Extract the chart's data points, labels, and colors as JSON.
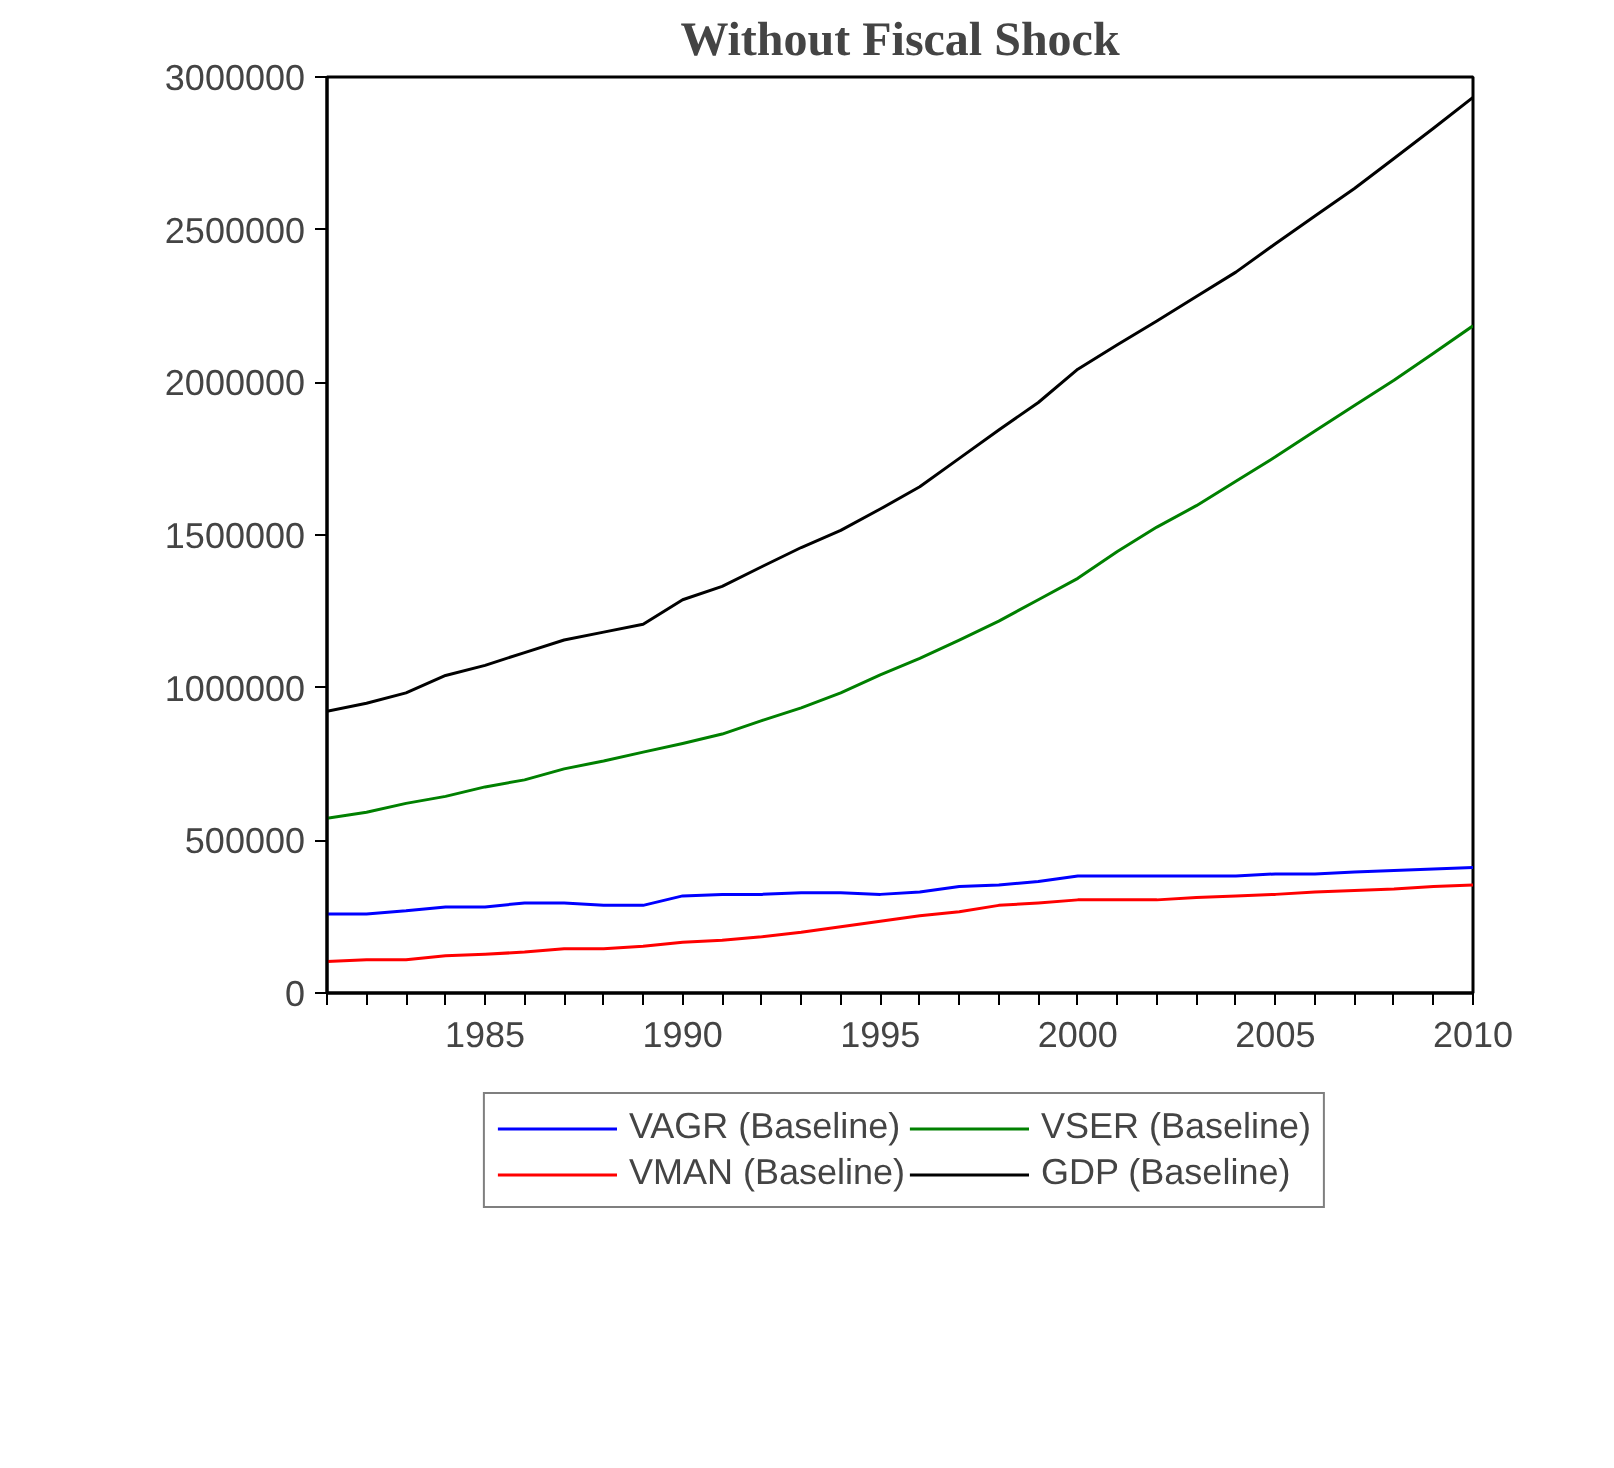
{
  "chart_data": {
    "type": "line",
    "title": "Without Fiscal Shock",
    "x": [
      1981,
      1982,
      1983,
      1984,
      1985,
      1986,
      1987,
      1988,
      1989,
      1990,
      1991,
      1992,
      1993,
      1994,
      1995,
      1996,
      1997,
      1998,
      1999,
      2000,
      2001,
      2002,
      2003,
      2004,
      2005,
      2006,
      2007,
      2008,
      2009,
      2010
    ],
    "series": [
      {
        "name": "VAGR (Baseline)",
        "color": "#0000ff",
        "values": [
          259000,
          259000,
          269000,
          282000,
          282000,
          295000,
          295000,
          287000,
          287000,
          318000,
          323000,
          323000,
          328000,
          328000,
          323000,
          331000,
          349000,
          354000,
          365000,
          383000,
          383000,
          383000,
          383000,
          383000,
          390000,
          390000,
          396000,
          401000,
          406000,
          411000
        ]
      },
      {
        "name": "VMAN (Baseline)",
        "color": "#ff0000",
        "values": [
          103000,
          109000,
          109000,
          122000,
          127000,
          134000,
          145000,
          145000,
          153000,
          166000,
          173000,
          184000,
          199000,
          217000,
          235000,
          253000,
          266000,
          287000,
          295000,
          305000,
          305000,
          305000,
          313000,
          318000,
          323000,
          331000,
          336000,
          341000,
          349000,
          354000
        ]
      },
      {
        "name": "VSER (Baseline)",
        "color": "#008000",
        "values": [
          572000,
          592000,
          621000,
          644000,
          675000,
          698000,
          734000,
          760000,
          789000,
          817000,
          848000,
          892000,
          934000,
          983000,
          1042000,
          1096000,
          1156000,
          1218000,
          1288000,
          1358000,
          1446000,
          1526000,
          1596000,
          1676000,
          1756000,
          1841000,
          1924000,
          2007000,
          2095000,
          2185000
        ]
      },
      {
        "name": "GDP (Baseline)",
        "color": "#000000",
        "values": [
          923000,
          949000,
          983000,
          1040000,
          1073000,
          1115000,
          1156000,
          1182000,
          1208000,
          1288000,
          1332000,
          1396000,
          1459000,
          1515000,
          1585000,
          1658000,
          1751000,
          1844000,
          1934000,
          2043000,
          2123000,
          2201000,
          2281000,
          2361000,
          2454000,
          2545000,
          2635000,
          2733000,
          2832000,
          2933000
        ]
      }
    ],
    "xlim": [
      1981,
      2010
    ],
    "xticks": [
      {
        "value": 1981,
        "label": null
      },
      {
        "value": 1982,
        "label": null
      },
      {
        "value": 1983,
        "label": null
      },
      {
        "value": 1984,
        "label": null
      },
      1985,
      {
        "value": 1986,
        "label": null
      },
      {
        "value": 1987,
        "label": null
      },
      {
        "value": 1988,
        "label": null
      },
      {
        "value": 1989,
        "label": null
      },
      1990,
      {
        "value": 1991,
        "label": null
      },
      {
        "value": 1992,
        "label": null
      },
      {
        "value": 1993,
        "label": null
      },
      {
        "value": 1994,
        "label": null
      },
      1995,
      {
        "value": 1996,
        "label": null
      },
      {
        "value": 1997,
        "label": null
      },
      {
        "value": 1998,
        "label": null
      },
      {
        "value": 1999,
        "label": null
      },
      2000,
      {
        "value": 2001,
        "label": null
      },
      {
        "value": 2002,
        "label": null
      },
      {
        "value": 2003,
        "label": null
      },
      {
        "value": 2004,
        "label": null
      },
      2005,
      {
        "value": 2006,
        "label": null
      },
      {
        "value": 2007,
        "label": null
      },
      {
        "value": 2008,
        "label": null
      },
      {
        "value": 2009,
        "label": null
      },
      2010
    ],
    "ylim": [
      0,
      3000000
    ],
    "yticks": [
      0,
      500000,
      1000000,
      1500000,
      2000000,
      2500000,
      3000000
    ],
    "grid": false,
    "legend": "bottom",
    "marker": "none",
    "line_style": "solid"
  }
}
